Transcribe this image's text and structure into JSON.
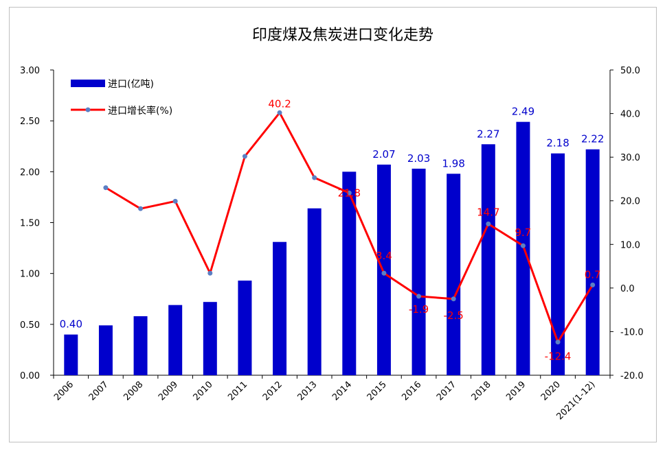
{
  "chart_data": {
    "type": "bar+line",
    "title": "印度煤及焦炭进口变化走势",
    "categories": [
      "2006",
      "2007",
      "2008",
      "2009",
      "2010",
      "2011",
      "2012",
      "2013",
      "2014",
      "2015",
      "2016",
      "2017",
      "2018",
      "2019",
      "2020",
      "2021(1-12)"
    ],
    "series": [
      {
        "name": "进口(亿吨)",
        "type": "bar",
        "axis": "left",
        "color": "#0000cc",
        "values": [
          0.4,
          0.49,
          0.58,
          0.69,
          0.72,
          0.93,
          1.31,
          1.64,
          2.0,
          2.07,
          2.03,
          1.98,
          2.27,
          2.49,
          2.18,
          2.22
        ],
        "data_labels": [
          "0.40",
          "",
          "",
          "",
          "",
          "",
          "",
          "",
          "",
          "2.07",
          "2.03",
          "1.98",
          "2.27",
          "2.49",
          "2.18",
          "2.22"
        ]
      },
      {
        "name": "进口增长率(%)",
        "type": "line",
        "axis": "right",
        "color": "#ff0000",
        "marker_color": "#5b7fc4",
        "values": [
          null,
          23.0,
          18.2,
          19.9,
          3.4,
          30.2,
          40.2,
          25.3,
          21.8,
          3.4,
          -1.9,
          -2.5,
          14.7,
          9.7,
          -12.4,
          0.7
        ],
        "data_labels": [
          "",
          "",
          "",
          "",
          "",
          "",
          "40.2",
          "",
          "21.8",
          "3.4",
          "-1.9",
          "-2.5",
          "14.7",
          "9.7",
          "-12.4",
          "0.7"
        ]
      }
    ],
    "y_left": {
      "min": 0,
      "max": 3,
      "ticks": [
        "0.00",
        "0.50",
        "1.00",
        "1.50",
        "2.00",
        "2.50",
        "3.00"
      ]
    },
    "y_right": {
      "min": -20,
      "max": 50,
      "ticks": [
        "-20.0",
        "-10.0",
        "0.0",
        "10.0",
        "20.0",
        "30.0",
        "40.0",
        "50.0"
      ]
    },
    "legend_position": "top-left",
    "grid": false
  }
}
